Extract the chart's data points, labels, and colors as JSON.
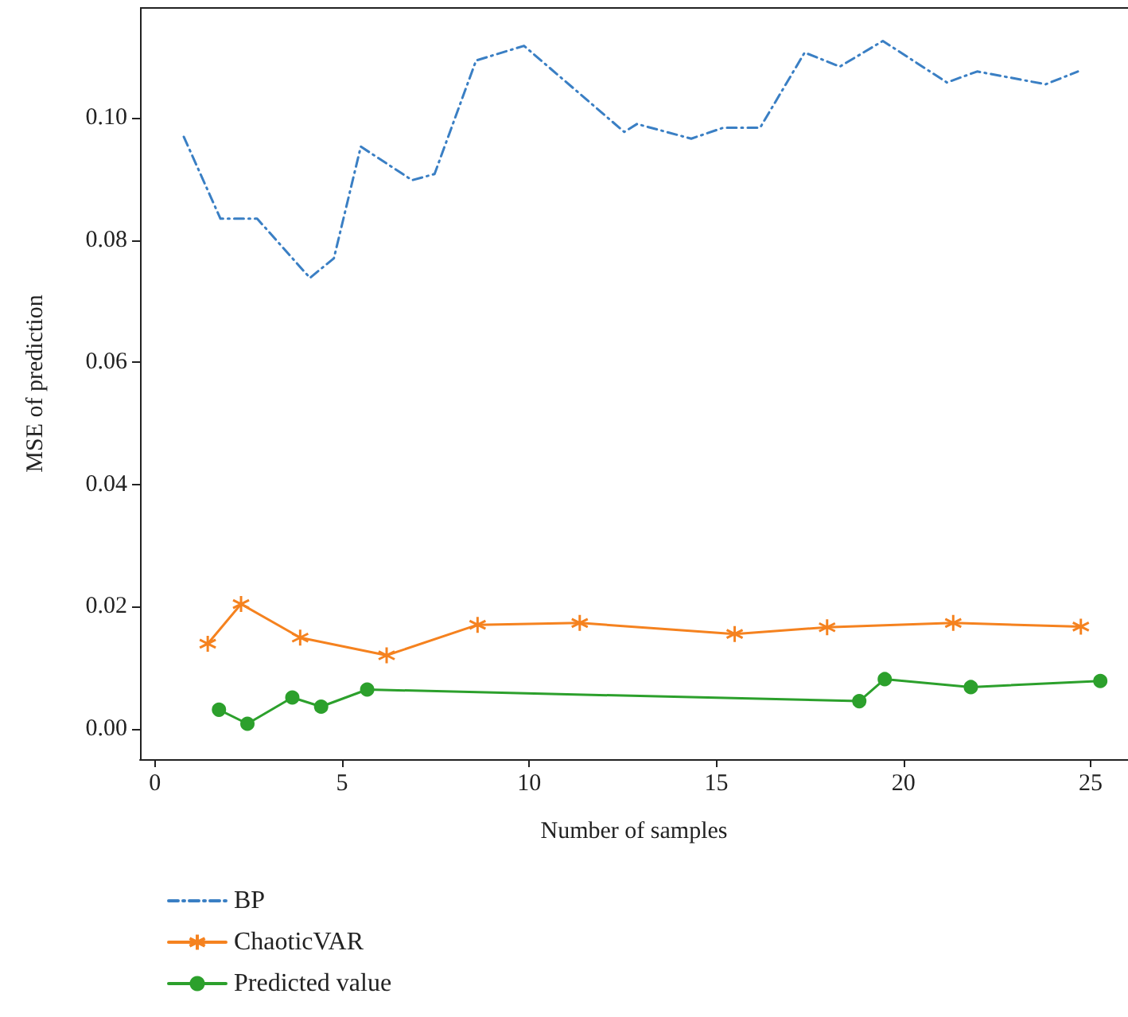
{
  "chart_data": {
    "type": "line",
    "xlabel": "Number of samples",
    "ylabel": "MSE of prediction",
    "xlim": [
      -0.4,
      26
    ],
    "xticks": [
      0,
      5,
      10,
      15,
      20,
      25
    ],
    "ylim": [
      -0.005,
      0.118
    ],
    "yticks": [
      {
        "value": 0,
        "label": "0.00"
      },
      {
        "value": 0.02,
        "label": "0.02"
      },
      {
        "value": 0.04,
        "label": "0.04"
      },
      {
        "value": 0.06,
        "label": "0.06"
      },
      {
        "value": 0.08,
        "label": "0.08"
      },
      {
        "value": 0.1,
        "label": "0.10"
      }
    ],
    "grid": false,
    "legend": "bottom left",
    "series": [
      {
        "name": "BP",
        "color": "#3a7fc4",
        "marker": "none",
        "line_style": "dashdot",
        "x": [
          0.77,
          1.75,
          2.73,
          4.14,
          4.78,
          5.5,
          6.87,
          7.47,
          8.58,
          9.86,
          12.54,
          12.88,
          14.33,
          15.19,
          16.17,
          17.36,
          18.3,
          19.45,
          21.16,
          21.97,
          23.8,
          24.66
        ],
        "values": [
          0.0969,
          0.0835,
          0.0835,
          0.0738,
          0.077,
          0.0953,
          0.0898,
          0.0908,
          0.1094,
          0.1118,
          0.0977,
          0.099,
          0.0966,
          0.0984,
          0.0984,
          0.1107,
          0.1084,
          0.1126,
          0.1058,
          0.1076,
          0.1055,
          0.1076
        ]
      },
      {
        "name": "ChaoticVAR",
        "color": "#f5821f",
        "marker": "cross",
        "line_style": "solid",
        "x": [
          1.41,
          2.3,
          3.88,
          6.19,
          8.62,
          11.35,
          15.49,
          17.96,
          21.33,
          24.74
        ],
        "values": [
          0.0139,
          0.0204,
          0.0149,
          0.012,
          0.017,
          0.0173,
          0.0155,
          0.0166,
          0.0173,
          0.0167
        ]
      },
      {
        "name": "Predicted value",
        "color": "#2ca02c",
        "marker": "circle",
        "line_style": "solid",
        "x": [
          1.71,
          2.47,
          3.67,
          4.44,
          5.67,
          18.82,
          19.5,
          21.8,
          25.26
        ],
        "values": [
          0.0031,
          0.0008,
          0.0051,
          0.0036,
          0.0064,
          0.0045,
          0.0081,
          0.0068,
          0.0078
        ]
      }
    ]
  }
}
